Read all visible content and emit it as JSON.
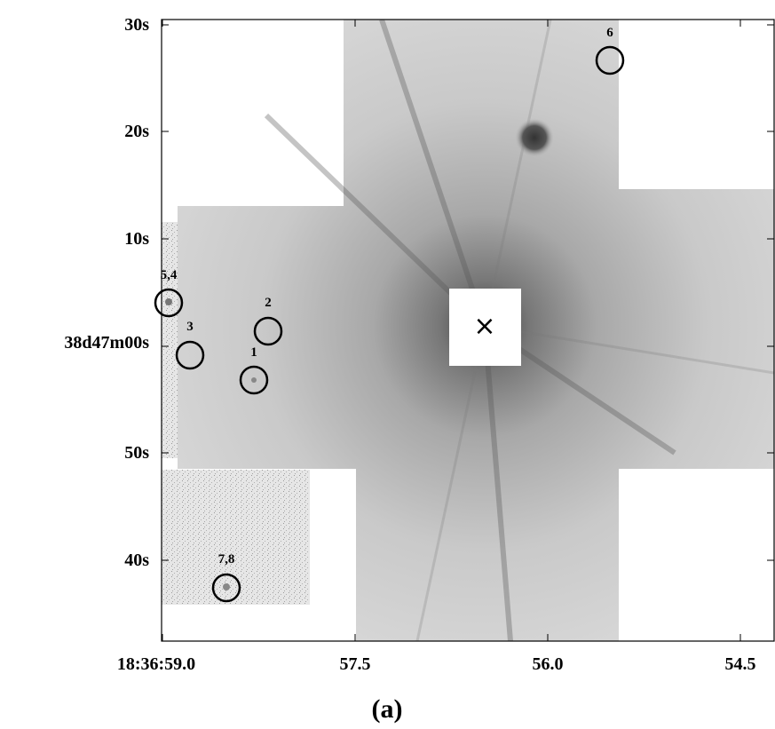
{
  "figure": {
    "caption": "(a)",
    "y_ticks": [
      "30s",
      "20s",
      "10s",
      "38d47m00s",
      "50s",
      "40s"
    ],
    "x_ticks": [
      "18:36:59.0",
      "57.5",
      "56.0",
      "54.5"
    ],
    "markers": [
      "6",
      "5,4",
      "2",
      "3",
      "1",
      "7,8"
    ],
    "star_mark": "×",
    "colors": {
      "frame": "#000000",
      "background": "#ffffff",
      "image_mid": "#c6c6c6",
      "halo": "#444444"
    }
  }
}
